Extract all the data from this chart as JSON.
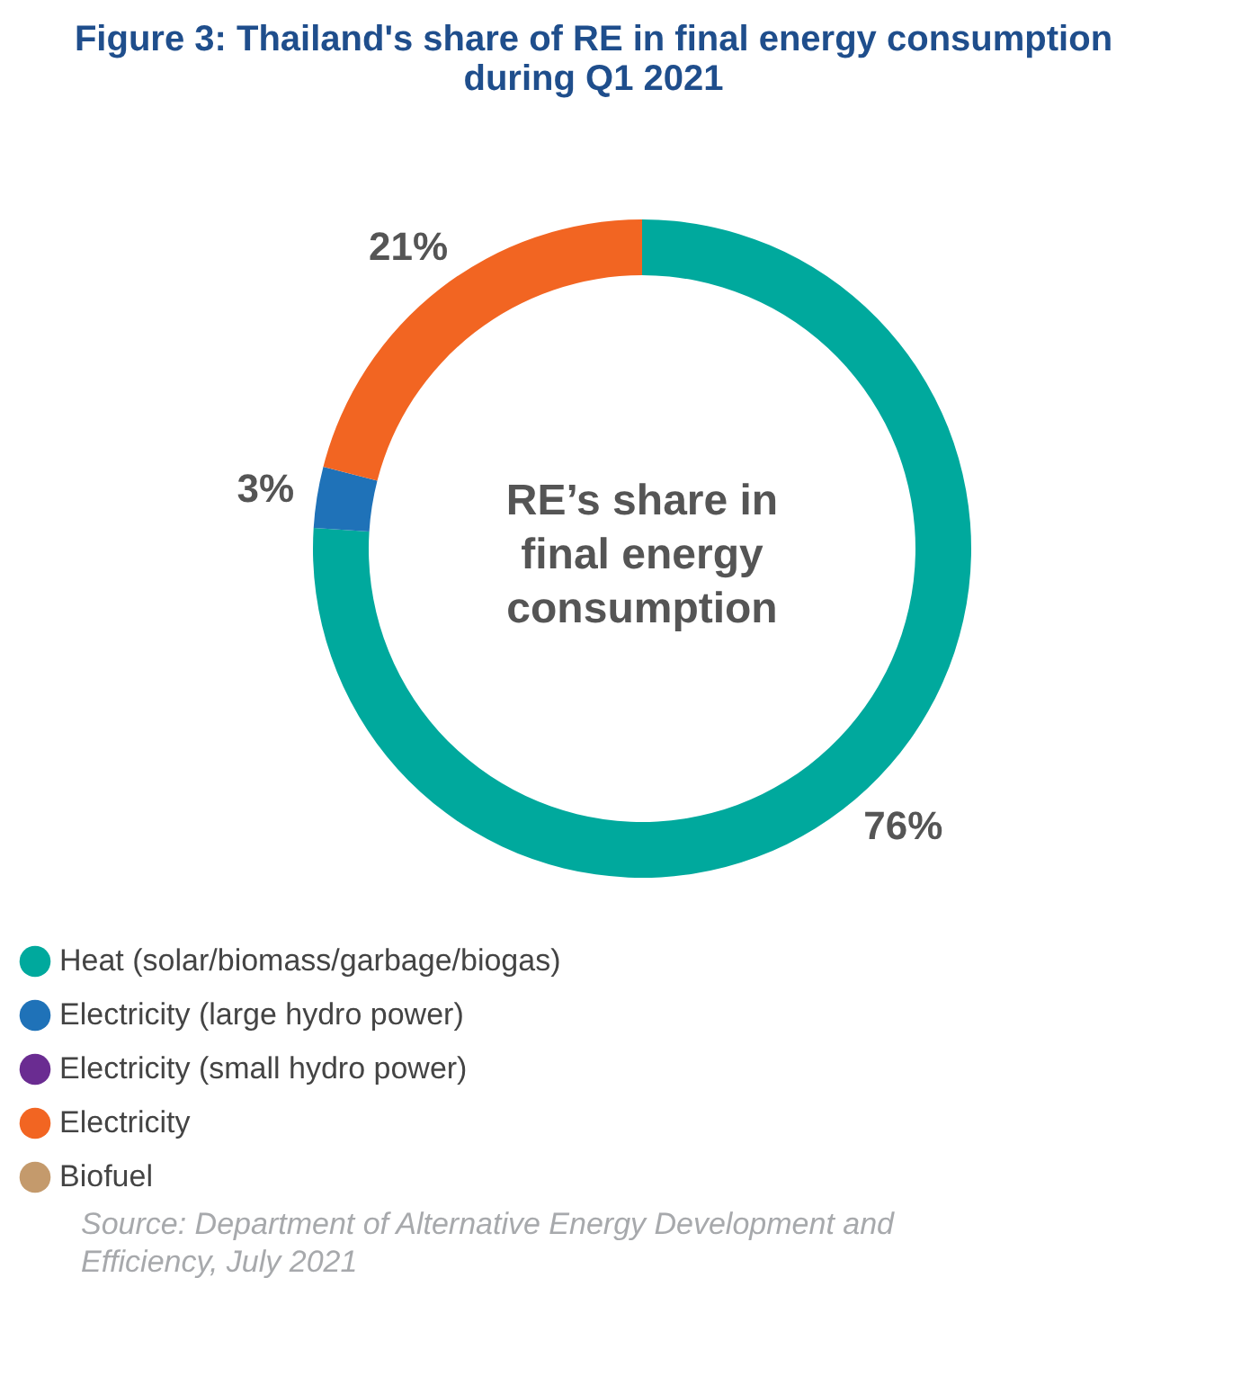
{
  "chart_data": {
    "type": "donut",
    "title": [
      "Figure 3: Thailand's share of RE in final energy consumption",
      "during Q1 2021"
    ],
    "categories": [
      "Heat (solar/biomass/garbage/biogas)",
      "Electricity (large hydro power)",
      "Electricity (small hydro power)",
      "Electricity",
      "Biofuel"
    ],
    "values": [
      76,
      3,
      0,
      21,
      0
    ],
    "value_labels": [
      "76%",
      "3%",
      null,
      "21%",
      null
    ],
    "colors": [
      "#00a99d",
      "#1f72b8",
      "#6a2c91",
      "#f26522",
      "#c49a6c"
    ],
    "legend": "bottom",
    "annotations": [
      "RE’s share in final energy consumption",
      "Source: Department of Alternative Energy Development and Efficiency, July 2021"
    ]
  }
}
